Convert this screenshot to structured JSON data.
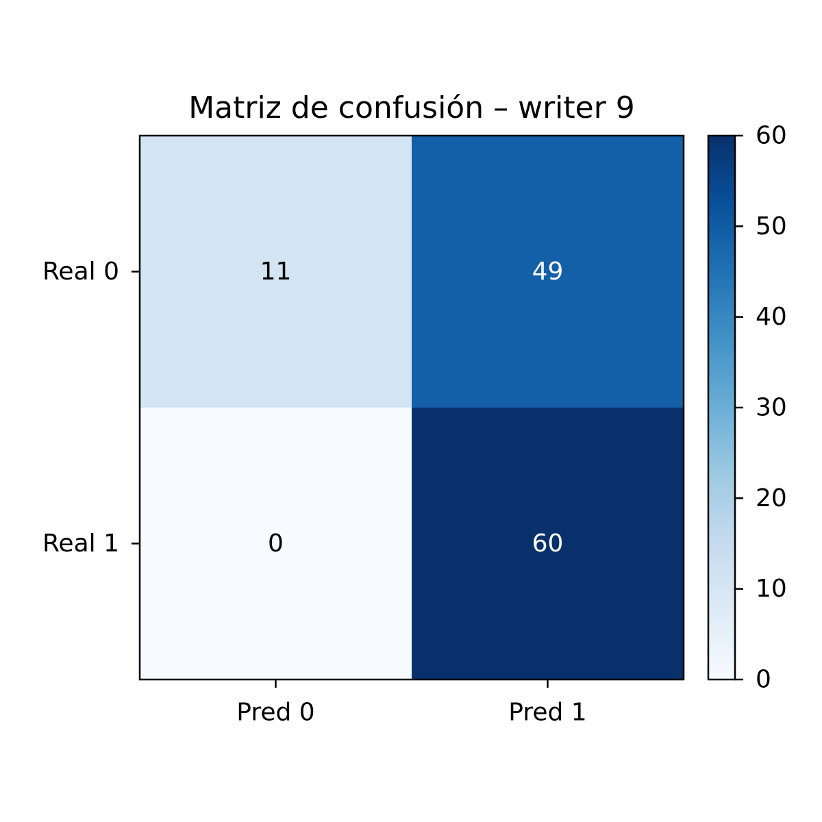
{
  "chart_data": {
    "type": "heatmap",
    "title": "Matriz de confusión – writer 9",
    "x_labels": [
      "Pred 0",
      "Pred 1"
    ],
    "y_labels": [
      "Real 0",
      "Real 1"
    ],
    "values": [
      [
        11,
        49
      ],
      [
        0,
        60
      ]
    ],
    "colormap": "Blues",
    "colorbar": {
      "min": 0,
      "max": 60,
      "ticks": [
        "0",
        "10",
        "20",
        "30",
        "40",
        "50",
        "60"
      ]
    },
    "text_colors": {
      "light": "#000000",
      "dark": "#ffffff"
    }
  }
}
